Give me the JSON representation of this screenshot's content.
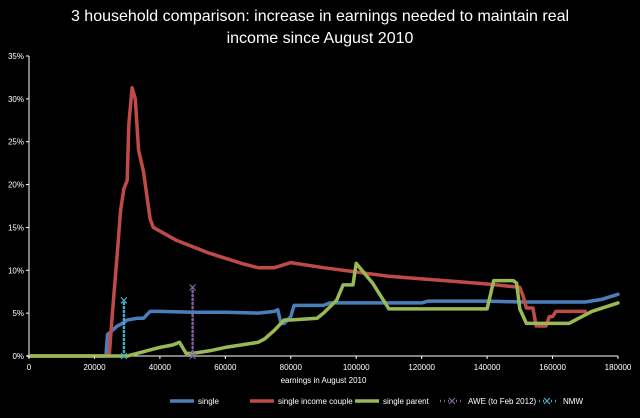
{
  "chart_data": {
    "type": "line",
    "title_line1": "3 household comparison: increase in earnings needed to maintain real",
    "title_line2": "income since August 2010",
    "xlabel": "earnings in August 2010",
    "ylabel": "",
    "xlim": [
      0,
      180000
    ],
    "ylim": [
      0,
      35
    ],
    "x_ticks": [
      0,
      20000,
      40000,
      60000,
      80000,
      100000,
      120000,
      140000,
      160000,
      180000
    ],
    "y_ticks": [
      0,
      5,
      10,
      15,
      20,
      25,
      30,
      35
    ],
    "y_tick_labels": [
      "0%",
      "5%",
      "10%",
      "15%",
      "20%",
      "25%",
      "30%",
      "35%"
    ],
    "grid": false,
    "legend_position": "bottom",
    "series": [
      {
        "name": "single",
        "color": "#4a7ebb",
        "style": "solid",
        "points": [
          [
            0,
            0
          ],
          [
            23500,
            0
          ],
          [
            24000,
            2.5
          ],
          [
            27000,
            3.5
          ],
          [
            28500,
            3.8
          ],
          [
            30000,
            4.2
          ],
          [
            33000,
            4.4
          ],
          [
            35000,
            4.4
          ],
          [
            37000,
            5.2
          ],
          [
            40000,
            5.2
          ],
          [
            50000,
            5.1
          ],
          [
            60000,
            5.1
          ],
          [
            70000,
            5.0
          ],
          [
            75000,
            5.2
          ],
          [
            76000,
            5.4
          ],
          [
            77000,
            3.8
          ],
          [
            78000,
            3.8
          ],
          [
            80000,
            4.6
          ],
          [
            81000,
            5.9
          ],
          [
            90000,
            5.9
          ],
          [
            92000,
            6.2
          ],
          [
            100000,
            6.2
          ],
          [
            120000,
            6.2
          ],
          [
            122000,
            6.4
          ],
          [
            140000,
            6.4
          ],
          [
            150000,
            6.3
          ],
          [
            170000,
            6.3
          ],
          [
            175000,
            6.6
          ],
          [
            180000,
            7.2
          ]
        ]
      },
      {
        "name": "single income couple",
        "color": "#be4b48",
        "style": "solid",
        "points": [
          [
            0,
            0
          ],
          [
            24500,
            0
          ],
          [
            25500,
            5
          ],
          [
            27000,
            12
          ],
          [
            28000,
            17
          ],
          [
            29000,
            19.5
          ],
          [
            30000,
            20.5
          ],
          [
            30500,
            27
          ],
          [
            31500,
            31.3
          ],
          [
            32500,
            30
          ],
          [
            33500,
            24
          ],
          [
            35000,
            21.5
          ],
          [
            37000,
            16
          ],
          [
            38000,
            15
          ],
          [
            45000,
            13.5
          ],
          [
            55000,
            12
          ],
          [
            65000,
            10.8
          ],
          [
            70000,
            10.3
          ],
          [
            75000,
            10.3
          ],
          [
            80000,
            10.9
          ],
          [
            90000,
            10.3
          ],
          [
            100000,
            9.8
          ],
          [
            110000,
            9.3
          ],
          [
            120000,
            9.0
          ],
          [
            130000,
            8.7
          ],
          [
            140000,
            8.4
          ],
          [
            150000,
            8.0
          ],
          [
            151000,
            7.0
          ],
          [
            152000,
            5.6
          ],
          [
            154000,
            5.6
          ],
          [
            155000,
            3.5
          ],
          [
            158000,
            3.5
          ],
          [
            159000,
            4.6
          ],
          [
            160000,
            4.6
          ],
          [
            161000,
            5.2
          ],
          [
            170000,
            5.2
          ]
        ]
      },
      {
        "name": "single parent",
        "color": "#98b954",
        "style": "solid",
        "points": [
          [
            0,
            0
          ],
          [
            30000,
            0
          ],
          [
            35000,
            0.5
          ],
          [
            38000,
            0.8
          ],
          [
            40000,
            1.0
          ],
          [
            44000,
            1.3
          ],
          [
            46000,
            1.6
          ],
          [
            48000,
            0.3
          ],
          [
            50000,
            0.3
          ],
          [
            55000,
            0.6
          ],
          [
            60000,
            1.0
          ],
          [
            65000,
            1.3
          ],
          [
            70000,
            1.6
          ],
          [
            72000,
            2.0
          ],
          [
            75000,
            3.0
          ],
          [
            78000,
            4.2
          ],
          [
            80000,
            4.2
          ],
          [
            88000,
            4.4
          ],
          [
            90000,
            5.0
          ],
          [
            94000,
            6.5
          ],
          [
            96000,
            8.3
          ],
          [
            99000,
            8.3
          ],
          [
            100000,
            10.8
          ],
          [
            105000,
            8.5
          ],
          [
            110000,
            5.5
          ],
          [
            140000,
            5.5
          ],
          [
            142000,
            8.8
          ],
          [
            148000,
            8.8
          ],
          [
            149000,
            8.5
          ],
          [
            150000,
            5.5
          ],
          [
            152000,
            3.8
          ],
          [
            165000,
            3.8
          ],
          [
            172000,
            5.2
          ],
          [
            180000,
            6.2
          ]
        ]
      },
      {
        "name": "AWE (to Feb 2012)",
        "color": "#8064a2",
        "style": "dotted",
        "points": [
          [
            50000,
            0
          ],
          [
            50000,
            8
          ]
        ]
      },
      {
        "name": "NMW",
        "color": "#4bacc6",
        "style": "dotted",
        "points": [
          [
            29000,
            0
          ],
          [
            29000,
            6.5
          ]
        ]
      }
    ]
  }
}
